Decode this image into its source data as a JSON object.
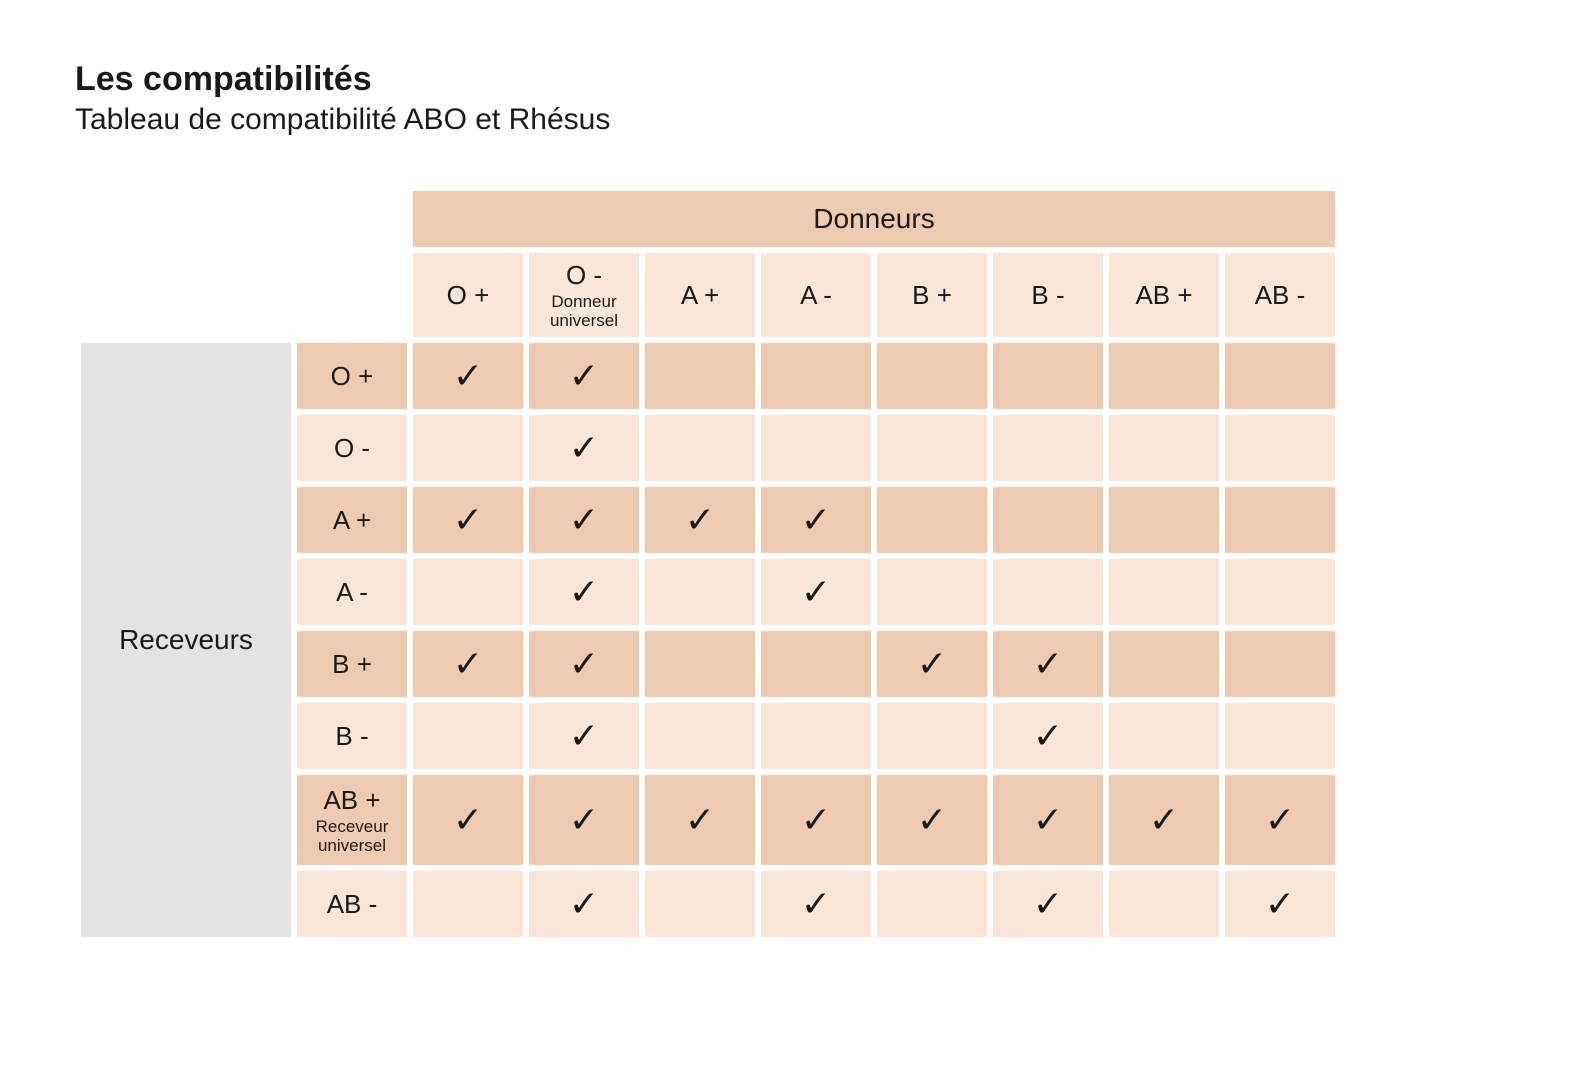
{
  "title": "Les compatibilités",
  "subtitle": "Tableau de compatibilité ABO et Rhésus",
  "donors_label": "Donneurs",
  "receivers_label": "Receveurs",
  "check_glyph": "✓",
  "colors": {
    "header_bg": "#eecab1",
    "col_head_bg": "#f9e6d7",
    "receivers_bg": "#e3e3e3",
    "row_head_even": "#f9e6d7",
    "row_head_odd": "#eecab1",
    "cell_even": "#f9e6d7",
    "cell_odd": "#eecab1",
    "text": "#1a1a1a"
  },
  "table": {
    "type": "table",
    "donor_columns": [
      {
        "label": "O +",
        "sub": ""
      },
      {
        "label": "O -",
        "sub": "Donneur universel"
      },
      {
        "label": "A +",
        "sub": ""
      },
      {
        "label": "A -",
        "sub": ""
      },
      {
        "label": "B +",
        "sub": ""
      },
      {
        "label": "B -",
        "sub": ""
      },
      {
        "label": "AB +",
        "sub": ""
      },
      {
        "label": "AB -",
        "sub": ""
      }
    ],
    "receiver_rows": [
      {
        "label": "O +",
        "sub": "",
        "compat": [
          true,
          true,
          false,
          false,
          false,
          false,
          false,
          false
        ]
      },
      {
        "label": "O -",
        "sub": "",
        "compat": [
          false,
          true,
          false,
          false,
          false,
          false,
          false,
          false
        ]
      },
      {
        "label": "A +",
        "sub": "",
        "compat": [
          true,
          true,
          true,
          true,
          false,
          false,
          false,
          false
        ]
      },
      {
        "label": "A -",
        "sub": "",
        "compat": [
          false,
          true,
          false,
          true,
          false,
          false,
          false,
          false
        ]
      },
      {
        "label": "B +",
        "sub": "",
        "compat": [
          true,
          true,
          false,
          false,
          true,
          true,
          false,
          false
        ]
      },
      {
        "label": "B -",
        "sub": "",
        "compat": [
          false,
          true,
          false,
          false,
          false,
          true,
          false,
          false
        ]
      },
      {
        "label": "AB +",
        "sub": "Receveur universel",
        "compat": [
          true,
          true,
          true,
          true,
          true,
          true,
          true,
          true
        ]
      },
      {
        "label": "AB -",
        "sub": "",
        "compat": [
          false,
          true,
          false,
          true,
          false,
          true,
          false,
          true
        ]
      }
    ]
  }
}
